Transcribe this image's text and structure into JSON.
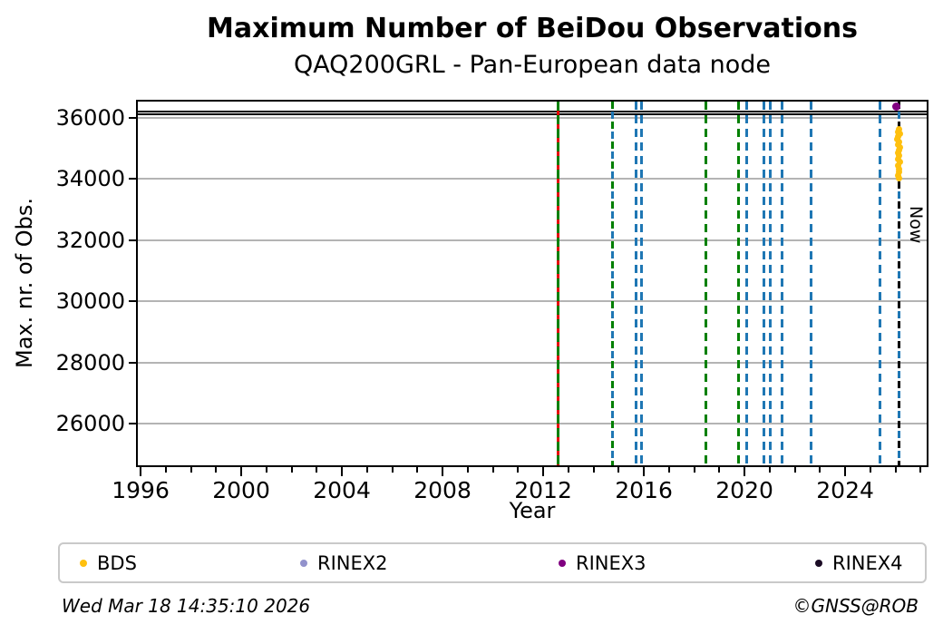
{
  "title": "Maximum Number of BeiDou Observations",
  "subtitle": "QAQ200GRL - Pan-European data node",
  "footer": {
    "timestamp": "Wed Mar 18 14:35:10 2026",
    "credit": "©GNSS@ROB"
  },
  "legend": [
    {
      "label": "BDS",
      "color": "#FFC00E"
    },
    {
      "label": "RINEX2",
      "color": "#9292CC"
    },
    {
      "label": "RINEX3",
      "color": "#800080"
    },
    {
      "label": "RINEX4",
      "color": "#1B0C25"
    }
  ],
  "chart_data": {
    "type": "scatter",
    "title": "Maximum Number of BeiDou Observations",
    "subtitle": "QAQ200GRL - Pan-European data node",
    "xlabel": "Year",
    "ylabel": "Max. nr. of Obs.",
    "xlim": [
      1995.89,
      2027.24
    ],
    "ylim": [
      24650,
      36533
    ],
    "x_major_ticks": [
      1996,
      2000,
      2004,
      2008,
      2012,
      2016,
      2020,
      2024
    ],
    "x_minor_tick_years": [
      1996,
      2027
    ],
    "y_ticks": [
      26000,
      28000,
      30000,
      32000,
      34000,
      36000
    ],
    "grid": "horizontal",
    "grid_color": "#b4b4b4",
    "hlines": [
      {
        "value": 36220,
        "color": "#000000"
      },
      {
        "value": 36130,
        "color": "#000000"
      }
    ],
    "vlines": [
      {
        "year": 2012.58,
        "colors": [
          "#008000",
          "#E60000"
        ],
        "style": "alt-solid"
      },
      {
        "year": 2014.77,
        "colors": [
          "#008000",
          "#1F77B4"
        ],
        "style": "alt-dash"
      },
      {
        "year": 2015.68,
        "colors": [
          "#1F77B4"
        ],
        "style": "dash"
      },
      {
        "year": 2015.9,
        "colors": [
          "#1F77B4"
        ],
        "style": "dash"
      },
      {
        "year": 2018.45,
        "colors": [
          "#008000"
        ],
        "style": "dash"
      },
      {
        "year": 2019.78,
        "colors": [
          "#008000"
        ],
        "style": "dash"
      },
      {
        "year": 2020.07,
        "colors": [
          "#1F77B4"
        ],
        "style": "dash"
      },
      {
        "year": 2020.76,
        "colors": [
          "#1F77B4"
        ],
        "style": "dash"
      },
      {
        "year": 2021.01,
        "colors": [
          "#1F77B4"
        ],
        "style": "dash"
      },
      {
        "year": 2021.48,
        "colors": [
          "#1F77B4"
        ],
        "style": "dash"
      },
      {
        "year": 2022.63,
        "colors": [
          "#1F77B4"
        ],
        "style": "dash"
      },
      {
        "year": 2025.4,
        "colors": [
          "#1F77B4"
        ],
        "style": "dash"
      },
      {
        "year": 2026.15,
        "colors": [
          "#000000",
          "#1F77B4"
        ],
        "style": "alt-dash",
        "label": "Now"
      }
    ],
    "series": [
      {
        "name": "BDS",
        "color": "#FFC00E",
        "marker_px": 7,
        "points": [
          [
            2026.13,
            35640
          ],
          [
            2026.1,
            35550
          ],
          [
            2026.16,
            35480
          ],
          [
            2026.12,
            35390
          ],
          [
            2026.08,
            35300
          ],
          [
            2026.15,
            35210
          ],
          [
            2026.11,
            35130
          ],
          [
            2026.17,
            35040
          ],
          [
            2026.13,
            34950
          ],
          [
            2026.09,
            34860
          ],
          [
            2026.14,
            34760
          ],
          [
            2026.12,
            34660
          ],
          [
            2026.16,
            34560
          ],
          [
            2026.1,
            34450
          ],
          [
            2026.13,
            34340
          ],
          [
            2026.15,
            34230
          ],
          [
            2026.11,
            34120
          ],
          [
            2026.13,
            34030
          ]
        ]
      },
      {
        "name": "RINEX2",
        "color": "#9292CC",
        "marker_px": 7,
        "points": []
      },
      {
        "name": "RINEX3",
        "color": "#800080",
        "marker_px": 9,
        "points": [
          [
            2026.05,
            36370
          ]
        ]
      },
      {
        "name": "RINEX4",
        "color": "#1B0C25",
        "marker_px": 7,
        "points": []
      }
    ],
    "legend_position": "bottom",
    "legend_entries": [
      "BDS",
      "RINEX2",
      "RINEX3",
      "RINEX4"
    ]
  }
}
